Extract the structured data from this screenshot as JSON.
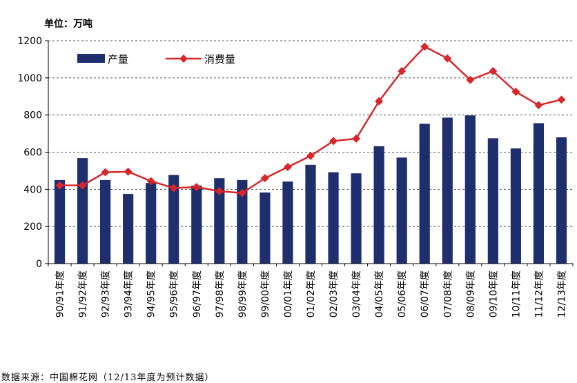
{
  "unit_label": "单位：万吨",
  "source_note": "数据来源：中国棉花网（12/13年度为预计数据）",
  "colors": {
    "bar": "#1f2f6e",
    "line": "#d8262a",
    "grid": "#555555"
  },
  "chart_data": {
    "type": "bar",
    "categories": [
      "90/91年度",
      "91/92年度",
      "92/93年度",
      "93/94年度",
      "94/95年度",
      "95/96年度",
      "96/97年度",
      "97/98年度",
      "98/99年度",
      "99/00年度",
      "00/01年度",
      "01/02年度",
      "02/03年度",
      "03/04年度",
      "04/05年度",
      "05/06年度",
      "06/07年度",
      "07/08年度",
      "08/09年度",
      "09/10年度",
      "10/11年度",
      "11/12年度",
      "12/13年度"
    ],
    "series": [
      {
        "name": "产量",
        "type": "bar",
        "values": [
          450,
          568,
          450,
          375,
          434,
          477,
          420,
          460,
          450,
          383,
          442,
          532,
          492,
          486,
          632,
          571,
          753,
          786,
          798,
          675,
          620,
          756,
          680
        ]
      },
      {
        "name": "消费量",
        "type": "line",
        "values": [
          421,
          421,
          492,
          495,
          444,
          407,
          412,
          390,
          380,
          460,
          520,
          580,
          660,
          673,
          874,
          1036,
          1168,
          1105,
          989,
          1036,
          925,
          853,
          883
        ]
      }
    ],
    "ylim": [
      0,
      1200
    ],
    "yticks": [
      0,
      200,
      400,
      600,
      800,
      1000,
      1200
    ],
    "grid": true,
    "legend": "top-left"
  }
}
